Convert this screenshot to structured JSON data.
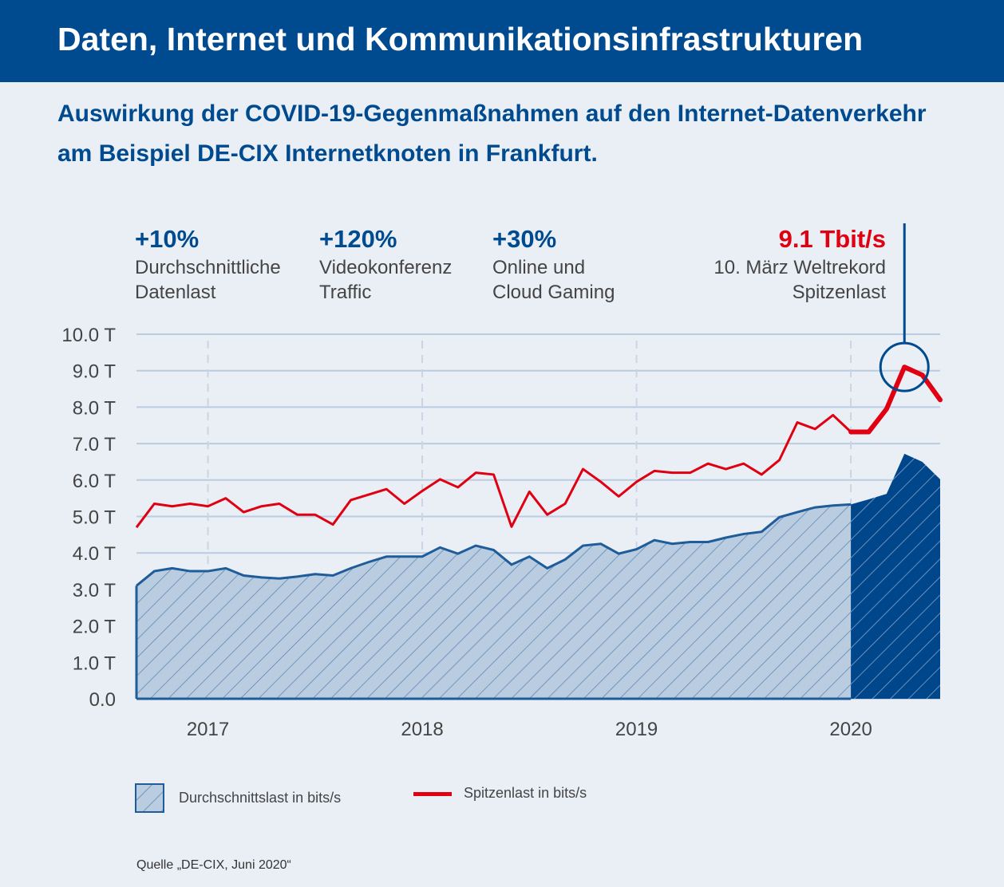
{
  "header": {
    "title": "Daten, Internet und Kommunikationsinfrastrukturen"
  },
  "subtitle": "Auswirkung der COVID-19-Gegenmaßnahmen auf den Internet-Datenverkehr am Beispiel DE-CIX Internetknoten in Frankfurt.",
  "annotations": [
    {
      "value": "+10%",
      "label1": "Durchschnittliche",
      "label2": "Datenlast"
    },
    {
      "value": "+120%",
      "label1": "Videokonferenz",
      "label2": "Traffic"
    },
    {
      "value": "+30%",
      "label1": "Online und",
      "label2": "Cloud Gaming"
    },
    {
      "value": "9.1 Tbit/s",
      "label1": "10. März Weltrekord",
      "label2": "Spitzenlast"
    }
  ],
  "colors": {
    "header": "#004a8f",
    "peak": "#e00011",
    "average": "#1f5c9a",
    "average_fill": "#b9cce0",
    "highlight_fill": "#00468b"
  },
  "chart_data": {
    "type": "area",
    "yticks": [
      "0.0",
      "1.0 T",
      "2.0 T",
      "3.0 T",
      "4.0 T",
      "5.0 T",
      "6.0 T",
      "7.0 T",
      "8.0 T",
      "9.0 T",
      "10.0 T"
    ],
    "ylim": [
      0,
      10
    ],
    "xticks": [
      "2017",
      "2018",
      "2019",
      "2020"
    ],
    "x_start": "2016-09",
    "x_end": "2020-06",
    "interval": "monthly",
    "grid": true,
    "legend": "bottom",
    "highlight_from": "2020-01",
    "series": [
      {
        "name": "Durchschnittslast in bits/s",
        "type": "area",
        "values": [
          3.1,
          3.5,
          3.58,
          3.5,
          3.5,
          3.58,
          3.38,
          3.33,
          3.3,
          3.35,
          3.42,
          3.38,
          3.58,
          3.75,
          3.9,
          3.9,
          3.9,
          4.15,
          3.98,
          4.2,
          4.08,
          3.68,
          3.9,
          3.58,
          3.82,
          4.2,
          4.25,
          3.98,
          4.1,
          4.35,
          4.25,
          4.3,
          4.3,
          4.42,
          4.52,
          4.58,
          4.98,
          5.12,
          5.25,
          5.3,
          5.33,
          5.47,
          5.62,
          6.72,
          6.5,
          6.02
        ]
      },
      {
        "name": "Spitzenlast in bits/s",
        "type": "line",
        "values": [
          4.7,
          5.35,
          5.28,
          5.35,
          5.28,
          5.5,
          5.12,
          5.28,
          5.35,
          5.05,
          5.05,
          4.78,
          5.45,
          5.6,
          5.75,
          5.35,
          5.7,
          6.02,
          5.8,
          6.2,
          6.15,
          4.72,
          5.68,
          5.05,
          5.35,
          6.3,
          5.95,
          5.55,
          5.95,
          6.25,
          6.2,
          6.2,
          6.45,
          6.3,
          6.45,
          6.15,
          6.55,
          7.58,
          7.4,
          7.78,
          7.32,
          7.32,
          7.95,
          9.1,
          8.88,
          8.2
        ]
      }
    ]
  },
  "source": "Quelle „DE-CIX, Juni 2020“"
}
